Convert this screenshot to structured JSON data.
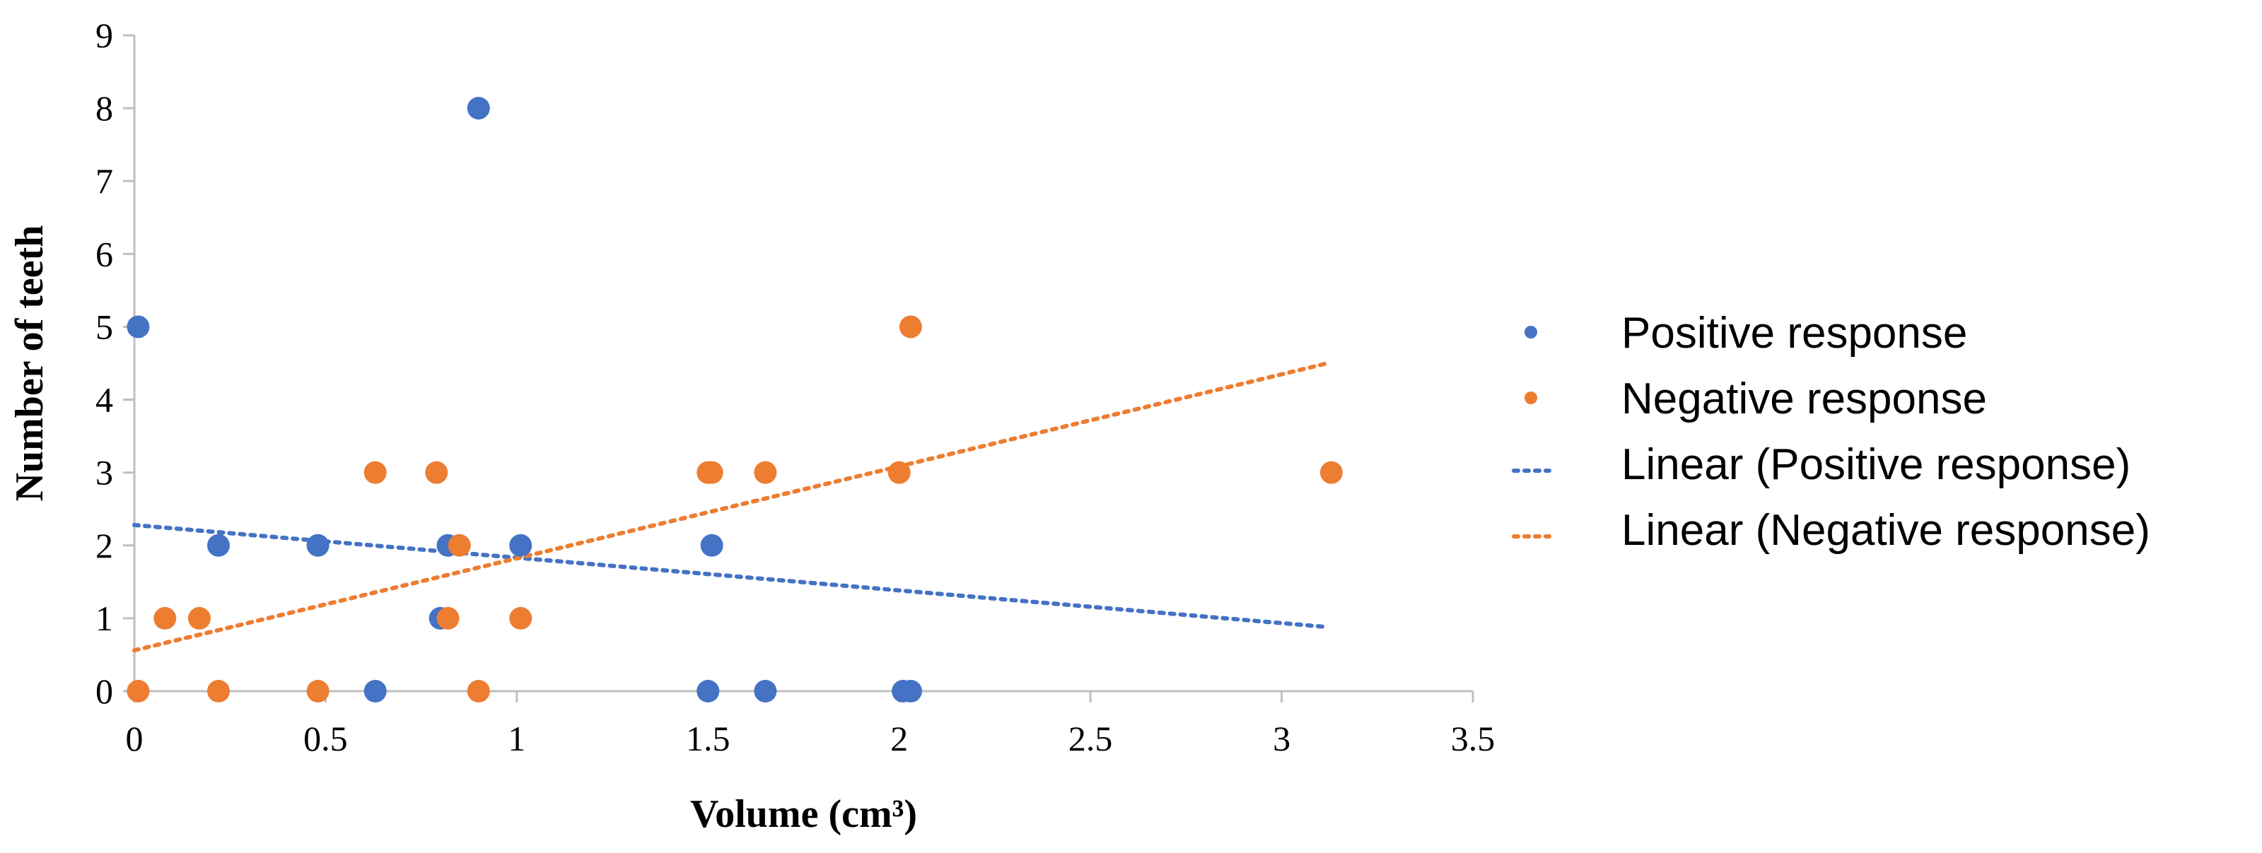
{
  "colors": {
    "positive": "#4472C4",
    "negative": "#ED7D31",
    "axis": "#BFBFBF"
  },
  "chart_data": {
    "type": "scatter",
    "title": "",
    "xlabel": "Volume (cm³)",
    "ylabel": "Number of teeth",
    "xlim": [
      0,
      3.5
    ],
    "ylim": [
      0,
      9
    ],
    "xticks": [
      0,
      0.5,
      1,
      1.5,
      2,
      2.5,
      3,
      3.5
    ],
    "xtick_labels": [
      "0",
      "0.5",
      "1",
      "1.5",
      "2",
      "2.5",
      "3",
      "3.5"
    ],
    "yticks": [
      0,
      1,
      2,
      3,
      4,
      5,
      6,
      7,
      8,
      9
    ],
    "ytick_labels": [
      "0",
      "1",
      "2",
      "3",
      "4",
      "5",
      "6",
      "7",
      "8",
      "9"
    ],
    "legend_position": "right",
    "series": [
      {
        "name": "Positive response",
        "kind": "points",
        "color": "#4472C4",
        "points": [
          [
            0.01,
            5
          ],
          [
            0.22,
            2
          ],
          [
            0.48,
            2
          ],
          [
            0.63,
            0
          ],
          [
            0.8,
            1
          ],
          [
            0.82,
            2
          ],
          [
            0.9,
            8
          ],
          [
            1.01,
            2
          ],
          [
            1.5,
            0
          ],
          [
            1.51,
            2
          ],
          [
            1.65,
            0
          ],
          [
            2.01,
            0
          ],
          [
            2.03,
            0
          ]
        ]
      },
      {
        "name": "Negative response",
        "kind": "points",
        "color": "#ED7D31",
        "points": [
          [
            0.01,
            0
          ],
          [
            0.08,
            1
          ],
          [
            0.17,
            1
          ],
          [
            0.22,
            0
          ],
          [
            0.48,
            0
          ],
          [
            0.63,
            3
          ],
          [
            0.79,
            3
          ],
          [
            0.82,
            1
          ],
          [
            0.85,
            2
          ],
          [
            0.9,
            0
          ],
          [
            1.01,
            1
          ],
          [
            1.5,
            3
          ],
          [
            1.51,
            3
          ],
          [
            1.65,
            3
          ],
          [
            2.0,
            3
          ],
          [
            2.03,
            5
          ],
          [
            3.13,
            3
          ]
        ]
      },
      {
        "name": "Linear (Positive response)",
        "kind": "trendline",
        "color": "#4472C4",
        "x": [
          0,
          3.12
        ],
        "y": [
          2.28,
          0.88
        ]
      },
      {
        "name": "Linear (Negative response)",
        "kind": "trendline",
        "color": "#ED7D31",
        "x": [
          0,
          3.12
        ],
        "y": [
          0.56,
          4.5
        ]
      }
    ]
  }
}
